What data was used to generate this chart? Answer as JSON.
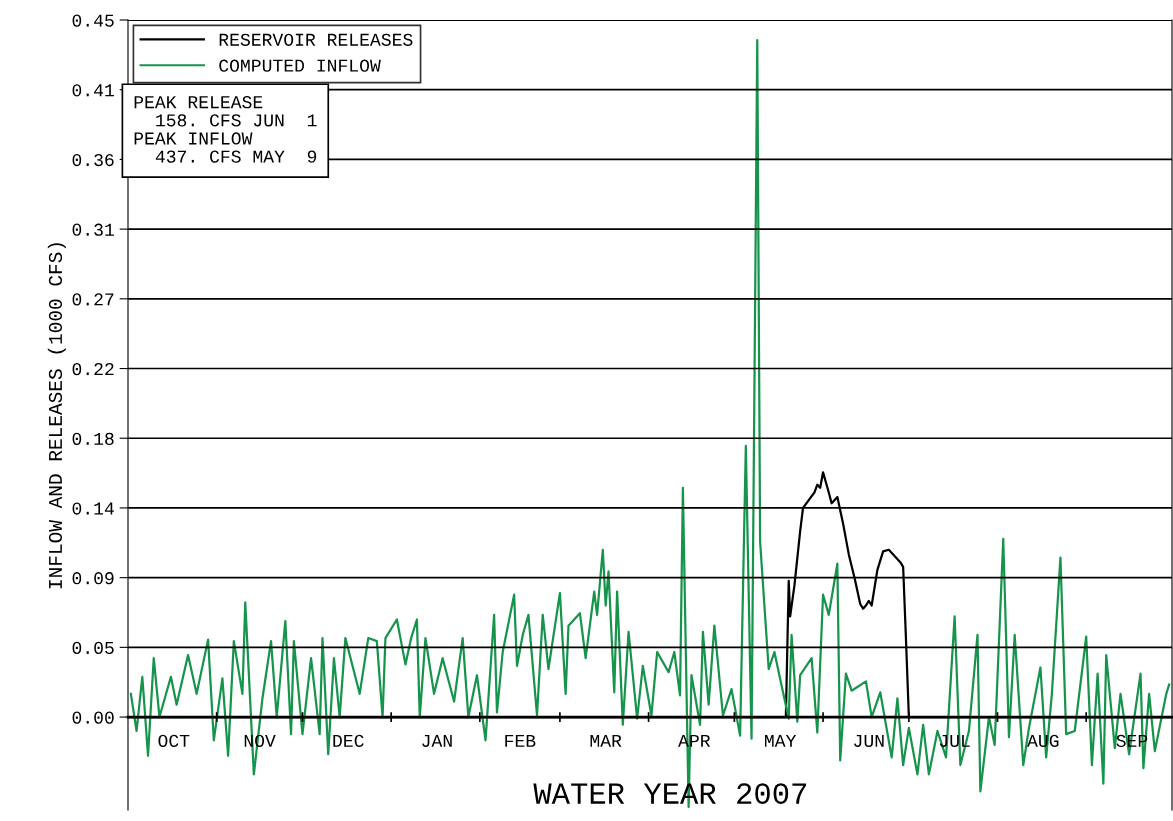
{
  "chart_data": {
    "type": "line",
    "xlabel": "WATER YEAR 2007",
    "ylabel": "INFLOW AND RELEASES (1000 CFS)",
    "annotations": [
      "PEAK RELEASE\n  158. CFS JUN  1\nPEAK INFLOW\n  437. CFS MAY  9"
    ],
    "xlim": [
      "2006-10-01",
      "2007-10-01"
    ],
    "xticks": [
      {
        "value": "2006-11-01",
        "label": null
      },
      {
        "value": "2006-12-01",
        "label": null
      },
      {
        "value": "2007-01-01",
        "label": null
      },
      {
        "value": "2007-02-01",
        "label": null
      },
      {
        "value": "2007-03-01",
        "label": null
      },
      {
        "value": "2007-04-01",
        "label": null
      },
      {
        "value": "2007-05-01",
        "label": null
      },
      {
        "value": "2007-06-01",
        "label": null
      },
      {
        "value": "2007-07-01",
        "label": null
      },
      {
        "value": "2007-08-01",
        "label": null
      },
      {
        "value": "2007-09-01",
        "label": null
      },
      {
        "value": "2006-10-17",
        "label": "OCT"
      },
      {
        "value": "2006-11-16",
        "label": "NOV"
      },
      {
        "value": "2006-12-17",
        "label": "DEC"
      },
      {
        "value": "2007-01-17",
        "label": "JAN"
      },
      {
        "value": "2007-02-15",
        "label": "FEB"
      },
      {
        "value": "2007-03-17",
        "label": "MAR"
      },
      {
        "value": "2007-04-17",
        "label": "APR"
      },
      {
        "value": "2007-05-17",
        "label": "MAY"
      },
      {
        "value": "2007-06-17",
        "label": "JUN"
      },
      {
        "value": "2007-07-17",
        "label": "JUL"
      },
      {
        "value": "2007-08-17",
        "label": "AUG"
      },
      {
        "value": "2007-09-17",
        "label": "SEP"
      }
    ],
    "ylim": [
      -0.06,
      0.45
    ],
    "yticks": [
      {
        "value": 0,
        "label": "0.00"
      },
      {
        "value": 0.045,
        "label": "0.05"
      },
      {
        "value": 0.09,
        "label": "0.09"
      },
      {
        "value": 0.135,
        "label": "0.14"
      },
      {
        "value": 0.18,
        "label": "0.18"
      },
      {
        "value": 0.225,
        "label": "0.22"
      },
      {
        "value": 0.27,
        "label": "0.27"
      },
      {
        "value": 0.315,
        "label": "0.31"
      },
      {
        "value": 0.36,
        "label": "0.36"
      },
      {
        "value": 0.405,
        "label": "0.41"
      },
      {
        "value": 0.45,
        "label": "0.45"
      }
    ],
    "grid": "y",
    "legend": "top left",
    "line_style": "solid",
    "marker": "none",
    "series": [
      {
        "name": "RESERVOIR RELEASES",
        "color": "#000000",
        "x": [
          "2006-10-01",
          "2007-05-19",
          "2007-05-20",
          "2007-05-20T12:00",
          "2007-05-22",
          "2007-05-24",
          "2007-05-25",
          "2007-05-27",
          "2007-05-29",
          "2007-05-30",
          "2007-05-31",
          "2007-06-01",
          "2007-06-03",
          "2007-06-04",
          "2007-06-05",
          "2007-06-06",
          "2007-06-08",
          "2007-06-10",
          "2007-06-12",
          "2007-06-14",
          "2007-06-15",
          "2007-06-16",
          "2007-06-17",
          "2007-06-18",
          "2007-06-20",
          "2007-06-22",
          "2007-06-24",
          "2007-06-26",
          "2007-06-28",
          "2007-06-29",
          "2007-06-30",
          "2007-07-01",
          "2007-10-01"
        ],
        "values": [
          0,
          0,
          0.088,
          0.065,
          0.085,
          0.12,
          0.135,
          0.14,
          0.145,
          0.15,
          0.148,
          0.158,
          0.145,
          0.138,
          0.14,
          0.142,
          0.125,
          0.105,
          0.09,
          0.073,
          0.07,
          0.072,
          0.075,
          0.072,
          0.095,
          0.107,
          0.108,
          0.104,
          0.1,
          0.097,
          0.05,
          0,
          0
        ]
      },
      {
        "name": "COMPUTED INFLOW",
        "color": "#16944c",
        "x": [
          "2006-10-02",
          "2006-10-04",
          "2006-10-06",
          "2006-10-08",
          "2006-10-10",
          "2006-10-12",
          "2006-10-16",
          "2006-10-18",
          "2006-10-22",
          "2006-10-25",
          "2006-10-29",
          "2006-10-31",
          "2006-11-03",
          "2006-11-05",
          "2006-11-07",
          "2006-11-10",
          "2006-11-11",
          "2006-11-14",
          "2006-11-17",
          "2006-11-20",
          "2006-11-22",
          "2006-11-25",
          "2006-11-27",
          "2006-11-28",
          "2006-12-01",
          "2006-12-04",
          "2006-12-07",
          "2006-12-08",
          "2006-12-10",
          "2006-12-12",
          "2006-12-14",
          "2006-12-16",
          "2006-12-21",
          "2006-12-24",
          "2006-12-27",
          "2006-12-29",
          "2006-12-30",
          "2007-01-03",
          "2007-01-06",
          "2007-01-08",
          "2007-01-10",
          "2007-01-11",
          "2007-01-13",
          "2007-01-16",
          "2007-01-19",
          "2007-01-23",
          "2007-01-26",
          "2007-01-28",
          "2007-01-31",
          "2007-02-03",
          "2007-02-06",
          "2007-02-07",
          "2007-02-09",
          "2007-02-13",
          "2007-02-14",
          "2007-02-16",
          "2007-02-18",
          "2007-02-21",
          "2007-02-23",
          "2007-02-25",
          "2007-03-01",
          "2007-03-03",
          "2007-03-04",
          "2007-03-08",
          "2007-03-10",
          "2007-03-13",
          "2007-03-14",
          "2007-03-16",
          "2007-03-17",
          "2007-03-18",
          "2007-03-20",
          "2007-03-21",
          "2007-03-23",
          "2007-03-25",
          "2007-03-28",
          "2007-03-30",
          "2007-04-02",
          "2007-04-04",
          "2007-04-08",
          "2007-04-10",
          "2007-04-12",
          "2007-04-13",
          "2007-04-15",
          "2007-04-16",
          "2007-04-19",
          "2007-04-20",
          "2007-04-22",
          "2007-04-24",
          "2007-04-27",
          "2007-04-30",
          "2007-05-03",
          "2007-05-05",
          "2007-05-07",
          "2007-05-09",
          "2007-05-10",
          "2007-05-13",
          "2007-05-15",
          "2007-05-18",
          "2007-05-20",
          "2007-05-21",
          "2007-05-23",
          "2007-05-24",
          "2007-05-28",
          "2007-05-30",
          "2007-06-01",
          "2007-06-03",
          "2007-06-06",
          "2007-06-07",
          "2007-06-09",
          "2007-06-11",
          "2007-06-16",
          "2007-06-18",
          "2007-06-21",
          "2007-06-25",
          "2007-06-27",
          "2007-06-29",
          "2007-07-01",
          "2007-07-04",
          "2007-07-06",
          "2007-07-08",
          "2007-07-11",
          "2007-07-14",
          "2007-07-17",
          "2007-07-19",
          "2007-07-22",
          "2007-07-25",
          "2007-07-26",
          "2007-07-29",
          "2007-07-31",
          "2007-08-03",
          "2007-08-05",
          "2007-08-07",
          "2007-08-10",
          "2007-08-12",
          "2007-08-16",
          "2007-08-18",
          "2007-08-20",
          "2007-08-23",
          "2007-08-25",
          "2007-08-28",
          "2007-09-01",
          "2007-09-03",
          "2007-09-05",
          "2007-09-07",
          "2007-09-08",
          "2007-09-11",
          "2007-09-13",
          "2007-09-16",
          "2007-09-20",
          "2007-09-21",
          "2007-09-23",
          "2007-09-25",
          "2007-09-29",
          "2007-09-30"
        ],
        "values": [
          0.015,
          -0.009,
          0.026,
          -0.025,
          0.038,
          0,
          0.026,
          0.008,
          0.04,
          0.015,
          0.05,
          -0.015,
          0.025,
          -0.025,
          0.049,
          0.015,
          0.074,
          -0.037,
          0.012,
          0.049,
          0,
          0.062,
          -0.011,
          0.049,
          -0.011,
          0.038,
          -0.011,
          0.051,
          -0.024,
          0.038,
          0,
          0.051,
          0.015,
          0.051,
          0.049,
          0,
          0.051,
          0.063,
          0.034,
          0.051,
          0.063,
          0,
          0.051,
          0.015,
          0.038,
          0.01,
          0.051,
          0,
          0.027,
          -0.015,
          0.066,
          0.003,
          0.042,
          0.079,
          0.033,
          0.053,
          0.066,
          0.001,
          0.066,
          0.031,
          0.08,
          0.015,
          0.059,
          0.067,
          0.038,
          0.081,
          0.066,
          0.108,
          0.072,
          0.094,
          0.016,
          0.081,
          -0.005,
          0.055,
          -0.001,
          0.033,
          0.001,
          0.042,
          0.029,
          0.042,
          0.014,
          0.148,
          -0.058,
          0.027,
          -0.005,
          0.055,
          0.008,
          0.059,
          0.001,
          0.018,
          -0.012,
          0.175,
          -0.014,
          0.437,
          0.113,
          0.031,
          0.042,
          0.016,
          -0.001,
          0.053,
          -0.003,
          0.027,
          0.038,
          -0.01,
          0.079,
          0.066,
          0.099,
          -0.028,
          0.028,
          0.017,
          0.023,
          0,
          0.016,
          -0.026,
          0.012,
          -0.031,
          -0.007,
          -0.037,
          -0.005,
          -0.037,
          -0.009,
          -0.026,
          0.065,
          -0.031,
          -0.009,
          0.053,
          -0.048,
          0,
          -0.018,
          0.115,
          -0.013,
          0.053,
          -0.031,
          -0.007,
          0.032,
          -0.026,
          0.015,
          0.103,
          -0.011,
          -0.009,
          0.052,
          -0.031,
          0.028,
          -0.043,
          0.04,
          -0.02,
          0.015,
          -0.024,
          0.028,
          -0.033,
          0.015,
          -0.022,
          0.015,
          0.021
        ]
      }
    ]
  }
}
